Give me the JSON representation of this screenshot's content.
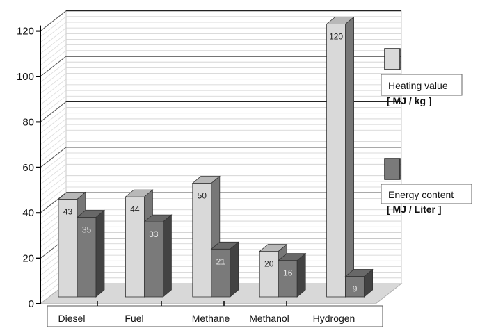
{
  "chart_data": {
    "type": "bar",
    "categories": [
      "Diesel",
      "Fuel",
      "Methane",
      "Methanol",
      "Hydrogen"
    ],
    "series": [
      {
        "name": "Heating value",
        "unit": "[ MJ / kg ]",
        "values": [
          43,
          44,
          50,
          20,
          120
        ],
        "color": "#d9d9d9"
      },
      {
        "name": "Energy content",
        "unit": "[ MJ / Liter ]",
        "values": [
          35,
          33,
          21,
          16,
          9
        ],
        "color": "#7a7a7a"
      }
    ],
    "ylim": [
      0,
      120
    ],
    "yticks": [
      0,
      20,
      40,
      60,
      80,
      100,
      120
    ],
    "grid": true,
    "legend": "right",
    "style": "3d"
  }
}
